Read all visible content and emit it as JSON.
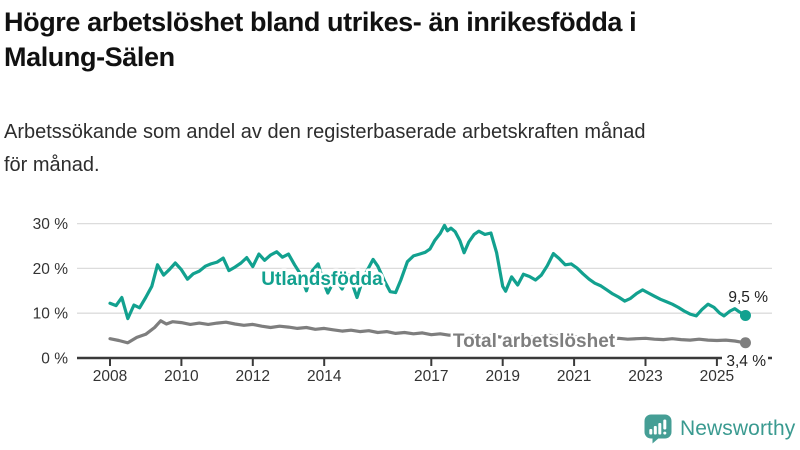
{
  "header": {
    "title_lines": [
      "Högre arbetslöshet bland utrikes- än inrikesfödda i",
      "Malung-Sälen"
    ],
    "subtitle_lines": [
      "Arbetssökande som andel av den registerbaserade arbetskraften månad",
      "för månad."
    ]
  },
  "chart_data": {
    "type": "line",
    "title": "Högre arbetslöshet bland utrikes- än inrikesfödda i Malung-Sälen",
    "subtitle": "Arbetssökande som andel av den registerbaserade arbetskraften månad för månad.",
    "xlabel": "",
    "ylabel": "",
    "ylim": [
      0,
      30
    ],
    "xlim": [
      2007.8,
      2026.2
    ],
    "grid": true,
    "legend_position": "inline-labels",
    "y_ticks": [
      {
        "value": 0,
        "label": "0 %"
      },
      {
        "value": 10,
        "label": "10 %"
      },
      {
        "value": 20,
        "label": "20 %"
      },
      {
        "value": 30,
        "label": "30 %"
      }
    ],
    "x_ticks": [
      {
        "value": 2008,
        "label": "2008"
      },
      {
        "value": 2010,
        "label": "2010"
      },
      {
        "value": 2012,
        "label": "2012"
      },
      {
        "value": 2014,
        "label": "2014"
      },
      {
        "value": 2017,
        "label": "2017"
      },
      {
        "value": 2019,
        "label": "2019"
      },
      {
        "value": 2021,
        "label": "2021"
      },
      {
        "value": 2023,
        "label": "2023"
      },
      {
        "value": 2025,
        "label": "2025"
      }
    ],
    "series": [
      {
        "name": "Utlandsfödda",
        "color": "#12a18f",
        "end_label": "9,5 %",
        "end_value": 9.5,
        "x": [
          2008,
          2008.17,
          2008.33,
          2008.5,
          2008.67,
          2008.83,
          2009,
          2009.17,
          2009.33,
          2009.5,
          2009.67,
          2009.83,
          2010,
          2010.17,
          2010.33,
          2010.5,
          2010.67,
          2010.83,
          2011,
          2011.17,
          2011.33,
          2011.5,
          2011.67,
          2011.83,
          2012,
          2012.17,
          2012.33,
          2012.5,
          2012.67,
          2012.83,
          2013,
          2013.17,
          2013.33,
          2013.5,
          2013.67,
          2013.83,
          2014,
          2014.1,
          2014.25,
          2014.42,
          2014.5,
          2014.7,
          2014.92,
          2015.1,
          2015.37,
          2015.5,
          2015.7,
          2015.85,
          2016,
          2016.15,
          2016.33,
          2016.5,
          2016.67,
          2016.83,
          2016.96,
          2017.1,
          2017.25,
          2017.37,
          2017.45,
          2017.55,
          2017.67,
          2017.8,
          2017.92,
          2018.05,
          2018.2,
          2018.33,
          2018.5,
          2018.67,
          2018.83,
          2019,
          2019.08,
          2019.25,
          2019.42,
          2019.58,
          2019.75,
          2019.92,
          2020.08,
          2020.25,
          2020.42,
          2020.58,
          2020.75,
          2020.92,
          2021.08,
          2021.25,
          2021.42,
          2021.58,
          2021.75,
          2021.92,
          2022.08,
          2022.25,
          2022.42,
          2022.58,
          2022.75,
          2022.92,
          2023.08,
          2023.25,
          2023.42,
          2023.58,
          2023.75,
          2023.92,
          2024.08,
          2024.25,
          2024.42,
          2024.58,
          2024.75,
          2024.92,
          2025.08,
          2025.2,
          2025.37,
          2025.5,
          2025.63,
          2025.8
        ],
        "values": [
          12.2,
          11.7,
          13.5,
          8.8,
          11.8,
          11.2,
          13.5,
          16,
          20.8,
          18.5,
          19.8,
          21.2,
          19.7,
          17.6,
          18.8,
          19.4,
          20.5,
          21,
          21.4,
          22.3,
          19.5,
          20.3,
          21.2,
          22.4,
          20.4,
          23.2,
          21.8,
          23,
          23.7,
          22.5,
          23.2,
          20.8,
          18.8,
          15,
          19.5,
          21,
          16.5,
          14.5,
          16.8,
          16.4,
          15.4,
          18.5,
          13.5,
          18,
          22,
          20.5,
          17,
          14.8,
          14.6,
          17.5,
          21.5,
          22.8,
          23.2,
          23.6,
          24.3,
          26.3,
          27.8,
          29.6,
          28.4,
          29,
          28.2,
          26.2,
          23.5,
          25.9,
          27.6,
          28.3,
          27.6,
          27.9,
          23.5,
          16,
          14.9,
          18.1,
          16.3,
          18.7,
          18.2,
          17.4,
          18.5,
          20.6,
          23.3,
          22.2,
          20.8,
          21,
          20.1,
          18.8,
          17.6,
          16.7,
          16.1,
          15.2,
          14.3,
          13.6,
          12.7,
          13.3,
          14.4,
          15.2,
          14.5,
          13.8,
          13.1,
          12.6,
          12,
          11.3,
          10.5,
          9.8,
          9.4,
          10.8,
          12,
          11.3,
          10,
          9.4,
          10.5,
          11,
          10.3,
          9.5
        ]
      },
      {
        "name": "Total arbetslöshet",
        "color": "#7e7e7e",
        "end_label": "3,4 %",
        "end_value": 3.4,
        "x": [
          2008,
          2008.25,
          2008.5,
          2008.75,
          2009,
          2009.25,
          2009.42,
          2009.58,
          2009.75,
          2010,
          2010.25,
          2010.5,
          2010.75,
          2011,
          2011.25,
          2011.5,
          2011.75,
          2012,
          2012.25,
          2012.5,
          2012.75,
          2013,
          2013.25,
          2013.5,
          2013.75,
          2014,
          2014.25,
          2014.5,
          2014.75,
          2015,
          2015.25,
          2015.5,
          2015.75,
          2016,
          2016.25,
          2016.5,
          2016.75,
          2017,
          2017.25,
          2017.5,
          2017.75,
          2018,
          2018.25,
          2018.5,
          2018.75,
          2019,
          2019.25,
          2019.5,
          2019.75,
          2020,
          2020.25,
          2020.5,
          2020.75,
          2021,
          2021.25,
          2021.5,
          2021.75,
          2022,
          2022.25,
          2022.5,
          2022.75,
          2023,
          2023.25,
          2023.5,
          2023.75,
          2024,
          2024.25,
          2024.5,
          2024.75,
          2025,
          2025.25,
          2025.5,
          2025.65,
          2025.8
        ],
        "values": [
          4.3,
          3.9,
          3.4,
          4.6,
          5.3,
          6.8,
          8.3,
          7.6,
          8.1,
          7.9,
          7.5,
          7.8,
          7.5,
          7.8,
          8,
          7.6,
          7.3,
          7.5,
          7.1,
          6.8,
          7.1,
          6.9,
          6.6,
          6.8,
          6.4,
          6.6,
          6.3,
          6,
          6.2,
          5.9,
          6.1,
          5.7,
          5.9,
          5.5,
          5.7,
          5.4,
          5.6,
          5.2,
          5.4,
          5.1,
          5.3,
          4.9,
          5.1,
          4.8,
          4.9,
          4.6,
          4.8,
          4.5,
          4.6,
          4.8,
          5.1,
          4.9,
          4.7,
          4.8,
          4.6,
          4.4,
          4.5,
          4.3,
          4.4,
          4.2,
          4.3,
          4.4,
          4.2,
          4.1,
          4.3,
          4.1,
          4,
          4.2,
          4,
          3.9,
          4,
          3.8,
          3.6,
          3.4
        ]
      }
    ],
    "colors": {
      "grid": "#dcdcdc",
      "axis": "#3a3a3a",
      "tick_label": "#333333",
      "end_label": "#222222"
    }
  },
  "branding": {
    "logo_text": "Newsworthy",
    "logo_color": "#3f9c92",
    "logo_icon": "newsworthy-speech-bubble-chart-icon"
  }
}
